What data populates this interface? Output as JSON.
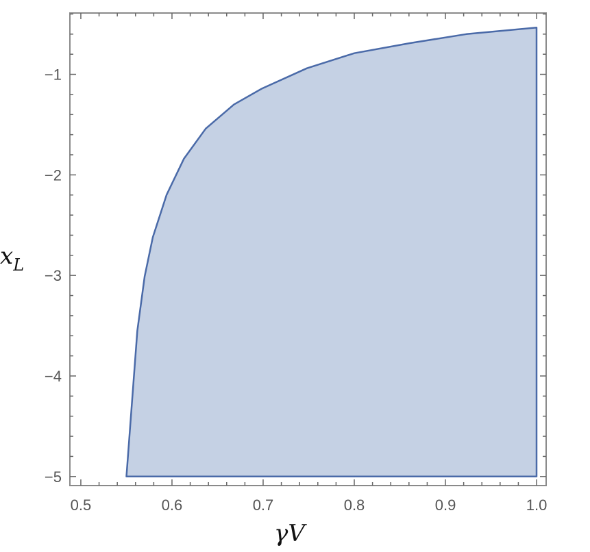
{
  "chart_data": {
    "type": "area",
    "title": "",
    "xlabel": {
      "main": "γ",
      "sub": "V"
    },
    "ylabel": {
      "main": "x",
      "sub": "L"
    },
    "xlim": [
      0.488,
      1.0105
    ],
    "ylim": [
      -5.09,
      -0.39
    ],
    "x_ticks": [
      0.5,
      0.6,
      0.7,
      0.8,
      0.9,
      1.0
    ],
    "x_tick_labels": [
      "0.5",
      "0.6",
      "0.7",
      "0.8",
      "0.9",
      "1.0"
    ],
    "y_ticks": [
      -1,
      -2,
      -3,
      -4,
      -5
    ],
    "y_tick_labels": [
      "−1",
      "−2",
      "−3",
      "−4",
      "−5"
    ],
    "x_minor_step": 0.02,
    "y_minor_step": 0.2,
    "grid": false,
    "legend": "none",
    "fill_color": "#c5d1e4",
    "stroke_color": "#4a6aa8",
    "frame_color": "#8a8a8a",
    "region_boundary": {
      "x": [
        0.55,
        0.562,
        0.57,
        0.579,
        0.594,
        0.613,
        0.637,
        0.668,
        0.699,
        0.748,
        0.8,
        0.861,
        0.923,
        1.0,
        1.0,
        0.55
      ],
      "y": [
        -5.0,
        -3.55,
        -3.01,
        -2.62,
        -2.2,
        -1.84,
        -1.54,
        -1.3,
        -1.14,
        -0.94,
        -0.79,
        -0.69,
        -0.6,
        -0.535,
        -5.0,
        -5.0
      ]
    }
  }
}
